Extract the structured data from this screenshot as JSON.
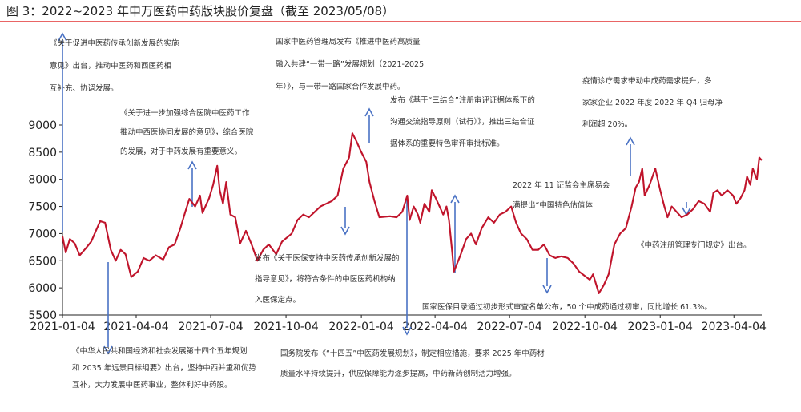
{
  "chart_data": {
    "type": "line",
    "title": "图 3：2022~2023 年申万医药中药版块股价复盘（截至 2023/05/08）",
    "xlabel": "",
    "ylabel": "",
    "ylim": [
      5500,
      9000
    ],
    "yticks": [
      5500,
      6000,
      6500,
      7000,
      7500,
      8000,
      8500,
      9000
    ],
    "xlim": [
      "2021-01-04",
      "2023-05-08"
    ],
    "xticks": [
      "2021-01-04",
      "2021-04-04",
      "2021-07-04",
      "2021-10-04",
      "2022-01-04",
      "2022-04-04",
      "2022-07-04",
      "2022-10-04",
      "2023-01-04",
      "2023-04-04"
    ],
    "grid": false,
    "legend": "none",
    "series": [
      {
        "color": "#c0142b",
        "points": [
          [
            "2021-01-04",
            6950
          ],
          [
            "2021-01-08",
            6650
          ],
          [
            "2021-01-13",
            6900
          ],
          [
            "2021-01-19",
            6820
          ],
          [
            "2021-01-25",
            6600
          ],
          [
            "2021-02-01",
            6720
          ],
          [
            "2021-02-08",
            6850
          ],
          [
            "2021-02-19",
            7230
          ],
          [
            "2021-02-25",
            7200
          ],
          [
            "2021-03-04",
            6700
          ],
          [
            "2021-03-10",
            6500
          ],
          [
            "2021-03-16",
            6700
          ],
          [
            "2021-03-22",
            6620
          ],
          [
            "2021-03-29",
            6200
          ],
          [
            "2021-04-06",
            6300
          ],
          [
            "2021-04-13",
            6550
          ],
          [
            "2021-04-20",
            6500
          ],
          [
            "2021-04-28",
            6600
          ],
          [
            "2021-05-07",
            6520
          ],
          [
            "2021-05-14",
            6750
          ],
          [
            "2021-05-21",
            6800
          ],
          [
            "2021-05-28",
            7100
          ],
          [
            "2021-06-03",
            7400
          ],
          [
            "2021-06-08",
            7640
          ],
          [
            "2021-06-15",
            7500
          ],
          [
            "2021-06-21",
            7700
          ],
          [
            "2021-06-24",
            7380
          ],
          [
            "2021-06-29",
            7550
          ],
          [
            "2021-07-02",
            7650
          ],
          [
            "2021-07-07",
            7900
          ],
          [
            "2021-07-12",
            8250
          ],
          [
            "2021-07-15",
            7800
          ],
          [
            "2021-07-19",
            7550
          ],
          [
            "2021-07-23",
            7950
          ],
          [
            "2021-07-28",
            7350
          ],
          [
            "2021-08-03",
            7300
          ],
          [
            "2021-08-09",
            6820
          ],
          [
            "2021-08-16",
            7050
          ],
          [
            "2021-08-23",
            6800
          ],
          [
            "2021-08-30",
            6500
          ],
          [
            "2021-09-06",
            6700
          ],
          [
            "2021-09-13",
            6800
          ],
          [
            "2021-09-22",
            6620
          ],
          [
            "2021-09-29",
            6850
          ],
          [
            "2021-10-11",
            7000
          ],
          [
            "2021-10-18",
            7250
          ],
          [
            "2021-10-25",
            7350
          ],
          [
            "2021-11-01",
            7300
          ],
          [
            "2021-11-08",
            7400
          ],
          [
            "2021-11-15",
            7500
          ],
          [
            "2021-11-22",
            7550
          ],
          [
            "2021-11-29",
            7600
          ],
          [
            "2021-12-06",
            7700
          ],
          [
            "2021-12-13",
            8200
          ],
          [
            "2021-12-20",
            8400
          ],
          [
            "2021-12-24",
            8850
          ],
          [
            "2021-12-29",
            8700
          ],
          [
            "2022-01-04",
            8500
          ],
          [
            "2022-01-10",
            8320
          ],
          [
            "2022-01-14",
            7950
          ],
          [
            "2022-01-20",
            7600
          ],
          [
            "2022-01-26",
            7300
          ],
          [
            "2022-02-08",
            7320
          ],
          [
            "2022-02-16",
            7300
          ],
          [
            "2022-02-23",
            7400
          ],
          [
            "2022-03-01",
            7700
          ],
          [
            "2022-03-04",
            7250
          ],
          [
            "2022-03-09",
            7500
          ],
          [
            "2022-03-14",
            7350
          ],
          [
            "2022-03-17",
            7200
          ],
          [
            "2022-03-22",
            7550
          ],
          [
            "2022-03-28",
            7400
          ],
          [
            "2022-03-31",
            7800
          ],
          [
            "2022-04-05",
            7650
          ],
          [
            "2022-04-11",
            7450
          ],
          [
            "2022-04-14",
            7350
          ],
          [
            "2022-04-18",
            7500
          ],
          [
            "2022-04-21",
            7250
          ],
          [
            "2022-04-25",
            6650
          ],
          [
            "2022-04-27",
            6300
          ],
          [
            "2022-05-05",
            6600
          ],
          [
            "2022-05-12",
            6900
          ],
          [
            "2022-05-18",
            7000
          ],
          [
            "2022-05-24",
            6800
          ],
          [
            "2022-05-31",
            7100
          ],
          [
            "2022-06-08",
            7300
          ],
          [
            "2022-06-15",
            7200
          ],
          [
            "2022-06-22",
            7350
          ],
          [
            "2022-06-29",
            7400
          ],
          [
            "2022-07-06",
            7500
          ],
          [
            "2022-07-12",
            7200
          ],
          [
            "2022-07-18",
            7000
          ],
          [
            "2022-07-25",
            6900
          ],
          [
            "2022-08-01",
            6700
          ],
          [
            "2022-08-08",
            6700
          ],
          [
            "2022-08-15",
            6800
          ],
          [
            "2022-08-22",
            6600
          ],
          [
            "2022-08-29",
            6550
          ],
          [
            "2022-09-05",
            6580
          ],
          [
            "2022-09-13",
            6550
          ],
          [
            "2022-09-20",
            6450
          ],
          [
            "2022-09-27",
            6300
          ],
          [
            "2022-10-10",
            6150
          ],
          [
            "2022-10-14",
            6250
          ],
          [
            "2022-10-21",
            5900
          ],
          [
            "2022-10-27",
            6050
          ],
          [
            "2022-11-02",
            6250
          ],
          [
            "2022-11-09",
            6800
          ],
          [
            "2022-11-16",
            7000
          ],
          [
            "2022-11-23",
            7100
          ],
          [
            "2022-11-30",
            7500
          ],
          [
            "2022-12-05",
            7850
          ],
          [
            "2022-12-09",
            7950
          ],
          [
            "2022-12-13",
            8200
          ],
          [
            "2022-12-16",
            7700
          ],
          [
            "2022-12-22",
            7900
          ],
          [
            "2022-12-29",
            8200
          ],
          [
            "2023-01-04",
            7800
          ],
          [
            "2023-01-09",
            7500
          ],
          [
            "2023-01-13",
            7300
          ],
          [
            "2023-01-18",
            7500
          ],
          [
            "2023-01-30",
            7300
          ],
          [
            "2023-02-06",
            7350
          ],
          [
            "2023-02-13",
            7450
          ],
          [
            "2023-02-20",
            7600
          ],
          [
            "2023-02-27",
            7550
          ],
          [
            "2023-03-06",
            7400
          ],
          [
            "2023-03-10",
            7750
          ],
          [
            "2023-03-15",
            7800
          ],
          [
            "2023-03-20",
            7700
          ],
          [
            "2023-03-27",
            7800
          ],
          [
            "2023-04-03",
            7700
          ],
          [
            "2023-04-07",
            7550
          ],
          [
            "2023-04-12",
            7650
          ],
          [
            "2023-04-17",
            7800
          ],
          [
            "2023-04-20",
            8050
          ],
          [
            "2023-04-24",
            7900
          ],
          [
            "2023-04-27",
            8200
          ],
          [
            "2023-05-02",
            8000
          ],
          [
            "2023-05-05",
            8400
          ],
          [
            "2023-05-08",
            8350
          ]
        ]
      }
    ],
    "annotations": [
      {
        "lines": [
          "《关于促进中医药传承创新发展的实施",
          "意见》出台，推动中医药和西医药相",
          "互补充、协调发展。"
        ],
        "arrow": "up",
        "date": "2021-01-04"
      },
      {
        "lines": [
          "《中华人民共和国经济和社会发展第十四个五年规划",
          "和 2035 年远景目标纲要》出台，坚持中西并重和优势",
          "互补，大力发展中医药事业，整体利好中药股。"
        ],
        "arrow": "down",
        "date": "2021-03-16"
      },
      {
        "lines": [
          "《关于进一步加强综合医院中医药工作",
          "推动中西医协同发展的意见》，综合医院",
          "的发展，对于中药发展有重要意义。"
        ],
        "arrow": "up",
        "date": "2021-06-24"
      },
      {
        "lines": [
          "国家中医药管理局发布《推进中医药高质量",
          "融入共建“一带一路”发展规划（2021-2025",
          "年）》，与一带一路国家合作发展中药。"
        ],
        "arrow": "down",
        "date": "2021-11-04"
      },
      {
        "lines": [
          "发布《关于医保支持中医药传承创新发展的",
          "指导意见》，将符合条件的中医医药机构纳",
          "入医保定点。"
        ],
        "arrow": "none",
        "date": "2021-11-04"
      },
      {
        "lines": [
          "发布《基于“三结合”注册审评证据体系下的",
          "沟通交流指导原则（试行）》，推出三结合证",
          "据体系的重要特色审评审批标准。"
        ],
        "arrow": "up",
        "date": "2021-12-29"
      },
      {
        "lines": [
          "国务院发布《“十四五”中医药发展规划》，制定相应措施，要求 2025 年中药材",
          "质量水平持续提升，供应保障能力逐步提高，中药新药创制活力增强。"
        ],
        "arrow": "down",
        "date": "2022-03-22"
      },
      {
        "lines": [
          "国家医保目录通过初步形式审查名单公布，50 个中成药通过初审，同比增长 61.3%。"
        ],
        "arrow": "down",
        "date": "2022-09-01"
      },
      {
        "lines": [
          "2022 年 11 证监会主席易会",
          "满提出“中国特色估值体"
        ],
        "arrow": "up",
        "date": "2022-11-16"
      },
      {
        "lines": [
          "疫情诊疗需求带动中成药需求提升，多",
          "家家企业 2022 年度 2022 年 Q4 归母净",
          "利润超 20%。"
        ],
        "arrow": "up",
        "date": "2022-12-29"
      },
      {
        "lines": [
          "《中药注册管理专门规定》出台。"
        ],
        "arrow": "down",
        "date": "2023-02-20"
      }
    ]
  }
}
